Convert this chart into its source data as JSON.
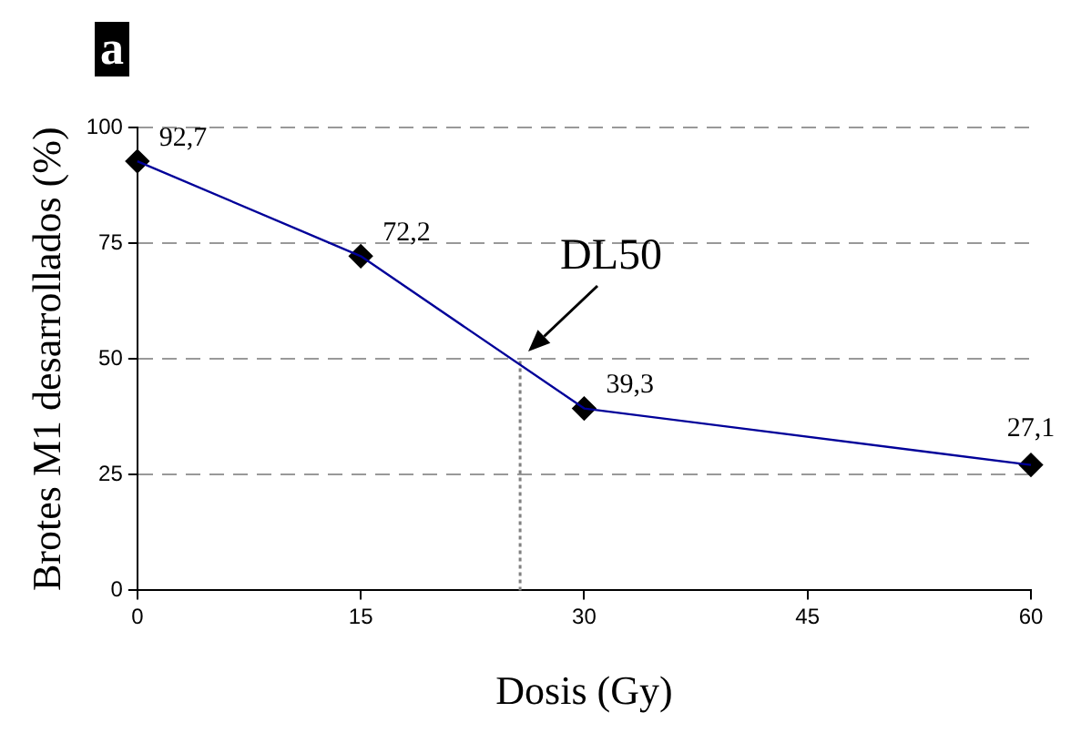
{
  "chart_data": {
    "type": "line",
    "xlabel": "Dosis (Gy)",
    "ylabel": "Brotes M1 desarrollados (%)",
    "x": [
      0,
      15,
      30,
      60
    ],
    "series": [
      {
        "color": "#000099",
        "values": [
          92.7,
          72.2,
          39.3,
          27.1
        ],
        "marker": "none"
      },
      {
        "type": "scatter",
        "color": "#000000",
        "values": [
          92.7,
          72.2,
          39.3,
          27.1
        ],
        "value_labels": [
          "92,7",
          "72,2",
          "39,3",
          "27,1"
        ]
      },
      {
        "type": "line",
        "x": [
          25.7,
          25.7
        ],
        "values": [
          0,
          50
        ],
        "color": "#808080",
        "line_style": "dotted",
        "marker": "none"
      }
    ],
    "xlim": [
      0,
      60
    ],
    "xticks": [
      0,
      15,
      30,
      45,
      60
    ],
    "ylim": [
      0,
      100
    ],
    "yticks": [
      0,
      25,
      50,
      75,
      100
    ],
    "grid": "y",
    "legend": false,
    "marker": "diamond",
    "line_style": "solid",
    "annotations": [
      "a",
      {
        "text": "DL50",
        "x": 25.7,
        "y": 50
      }
    ]
  }
}
